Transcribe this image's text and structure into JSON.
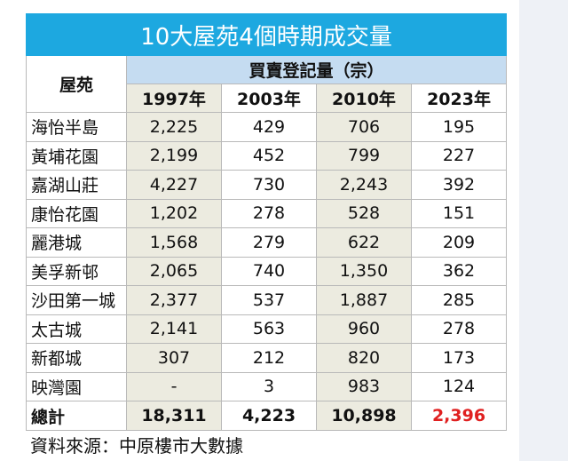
{
  "table": {
    "title": "10大屋苑4個時期成交量",
    "estate_header": "屋苑",
    "group_header": "買賣登記量（宗）",
    "years": [
      "1997年",
      "2003年",
      "2010年",
      "2023年"
    ],
    "rows": [
      {
        "name": "海怡半島",
        "values": [
          "2,225",
          "429",
          "706",
          "195"
        ]
      },
      {
        "name": "黃埔花園",
        "values": [
          "2,199",
          "452",
          "799",
          "227"
        ]
      },
      {
        "name": "嘉湖山莊",
        "values": [
          "4,227",
          "730",
          "2,243",
          "392"
        ]
      },
      {
        "name": "康怡花園",
        "values": [
          "1,202",
          "278",
          "528",
          "151"
        ]
      },
      {
        "name": "麗港城",
        "values": [
          "1,568",
          "279",
          "622",
          "209"
        ]
      },
      {
        "name": "美孚新邨",
        "values": [
          "2,065",
          "740",
          "1,350",
          "362"
        ]
      },
      {
        "name": "沙田第一城",
        "values": [
          "2,377",
          "537",
          "1,887",
          "285"
        ]
      },
      {
        "name": "太古城",
        "values": [
          "2,141",
          "563",
          "960",
          "278"
        ]
      },
      {
        "name": "新都城",
        "values": [
          "307",
          "212",
          "820",
          "173"
        ]
      },
      {
        "name": "映灣園",
        "values": [
          "-",
          "3",
          "983",
          "124"
        ]
      }
    ],
    "total": {
      "name": "總計",
      "values": [
        "18,311",
        "4,223",
        "10,898",
        "2,396"
      ]
    }
  },
  "source": "資料來源：中原樓市大數據",
  "colors": {
    "title_bg": "#1da8e0",
    "group_bg": "#c5dcf1",
    "shade_bg": "#ecebe0",
    "highlight": "#e02020"
  }
}
